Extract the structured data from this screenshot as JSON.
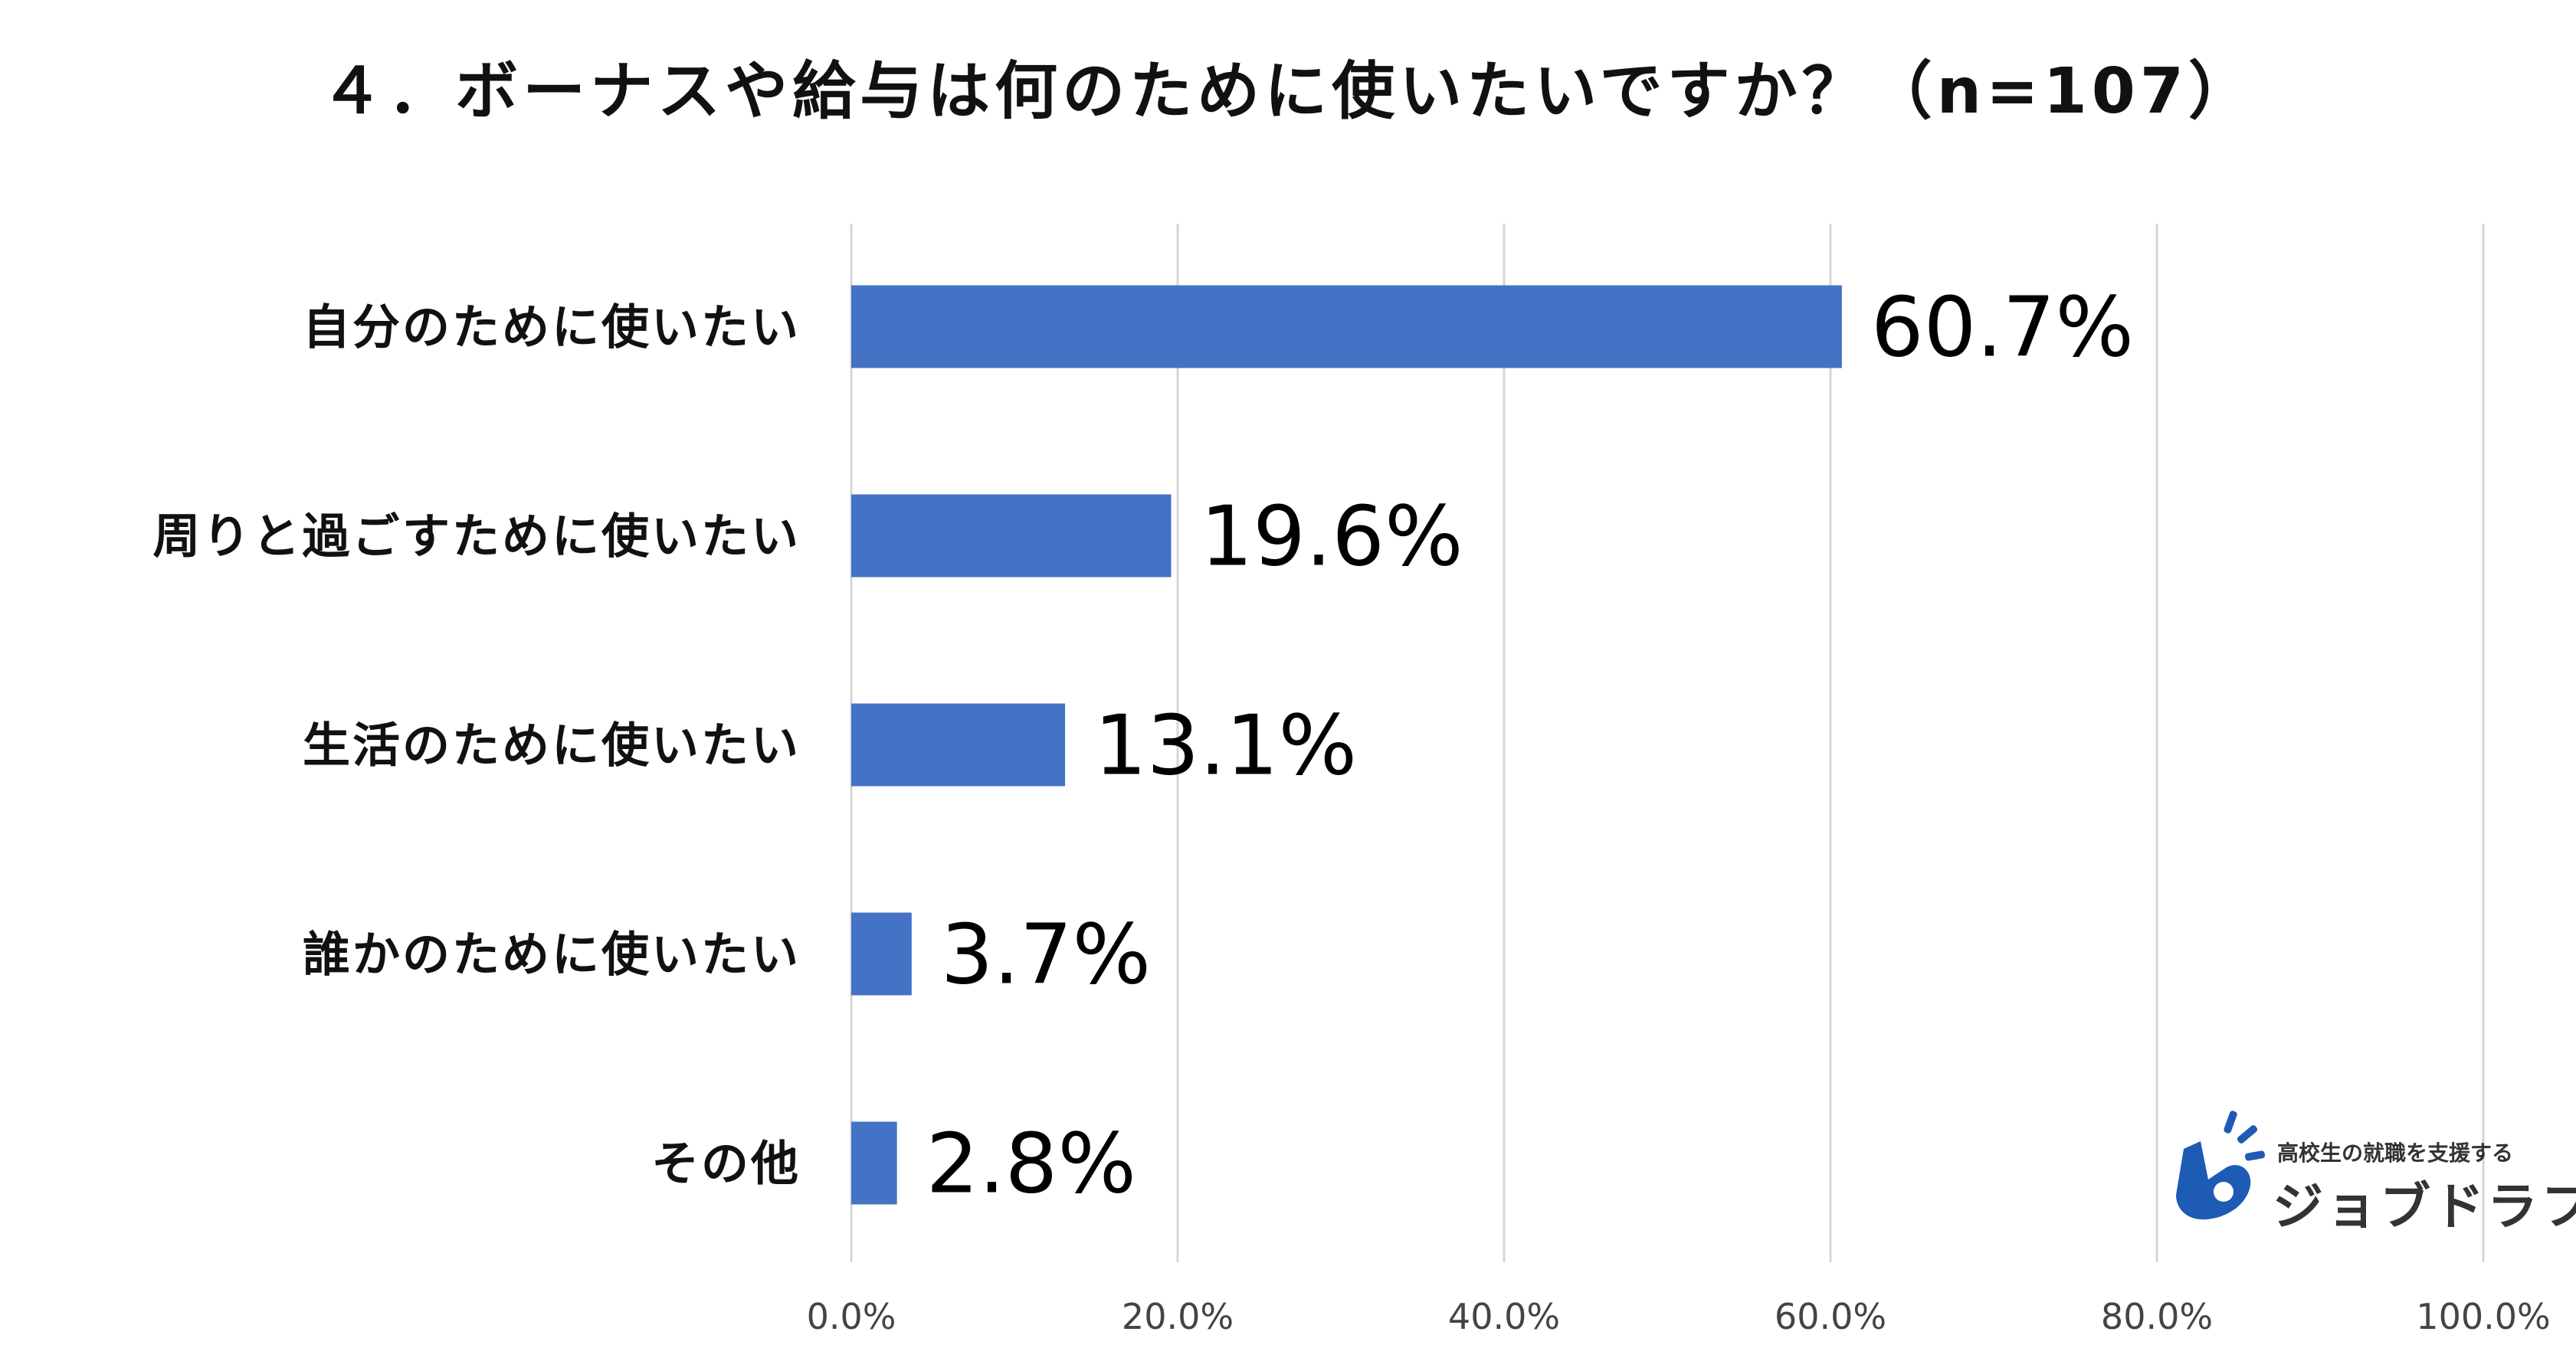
{
  "chart_data": {
    "type": "bar",
    "orientation": "horizontal",
    "title": "４．ボーナスや給与は何のために使いたいですか？（n=107）",
    "categories": [
      "自分のために使いたい",
      "周りと過ごすために使いたい",
      "生活のために使いたい",
      "誰かのために使いたい",
      "その他"
    ],
    "values": [
      60.7,
      19.6,
      13.1,
      3.7,
      2.8
    ],
    "data_labels": [
      "60.7%",
      "19.6%",
      "13.1%",
      "3.7%",
      "2.8%"
    ],
    "xlim": [
      0,
      100
    ],
    "ticks": [
      0,
      20,
      40,
      60,
      80,
      100
    ],
    "tick_labels": [
      "0.0%",
      "20.0%",
      "40.0%",
      "60.0%",
      "80.0%",
      "100.0%"
    ],
    "grid": true,
    "legend": "none",
    "bar_color": "#4472C4"
  },
  "logo": {
    "tagline": "高校生の就職を支援する",
    "name": "ジョブドラフト",
    "color": "#1E5BB5"
  }
}
